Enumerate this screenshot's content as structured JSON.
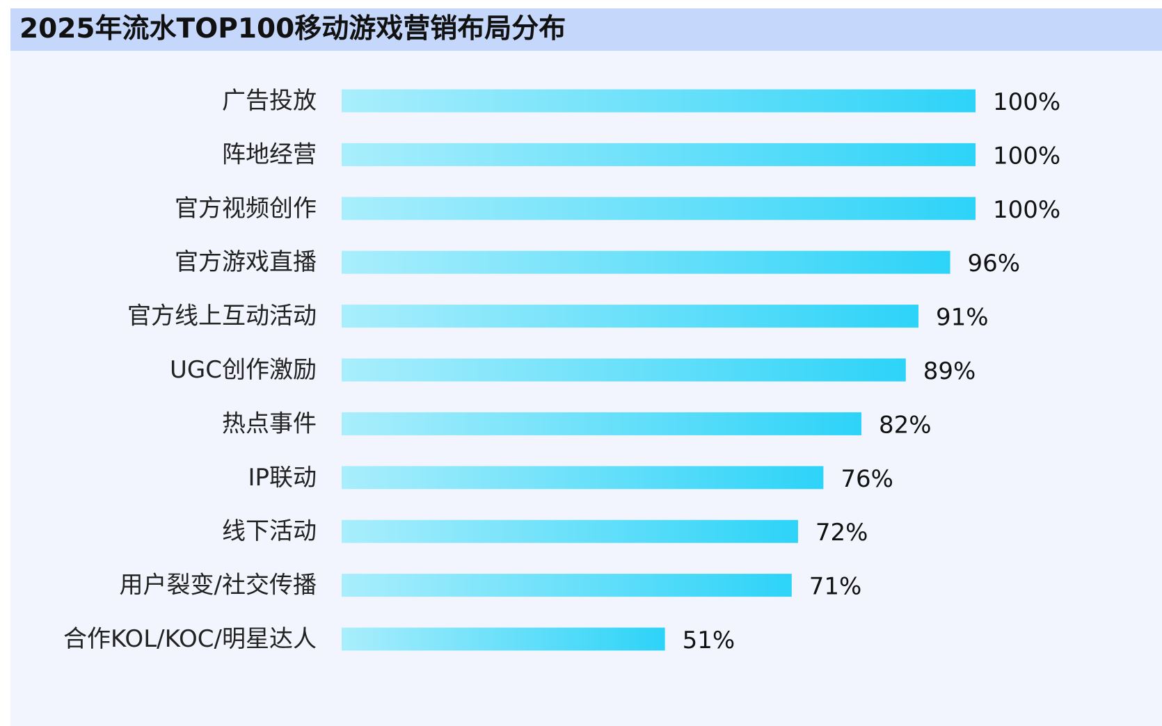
{
  "header": {
    "title": "2025年流水TOP100移动游戏营销布局分布"
  },
  "colors": {
    "bar_start": "#a9eefc",
    "bar_end": "#2dd3f8",
    "title_bar": "#c5d7fb",
    "panel_bg": "#f2f5fd"
  },
  "chart_data": {
    "type": "bar",
    "orientation": "horizontal",
    "categories": [
      "广告投放",
      "阵地经营",
      "官方视频创作",
      "官方游戏直播",
      "官方线上互动活动",
      "UGC创作激励",
      "热点事件",
      "IP联动",
      "线下活动",
      "用户裂变/社交传播",
      "合作KOL/KOC/明星达人"
    ],
    "values": [
      100,
      100,
      100,
      96,
      91,
      89,
      82,
      76,
      72,
      71,
      51
    ],
    "value_labels": [
      "100%",
      "100%",
      "100%",
      "96%",
      "91%",
      "89%",
      "82%",
      "76%",
      "72%",
      "71%",
      "51%"
    ],
    "unit": "%",
    "xlim": [
      0,
      100
    ],
    "grid": false,
    "legend": "none"
  }
}
